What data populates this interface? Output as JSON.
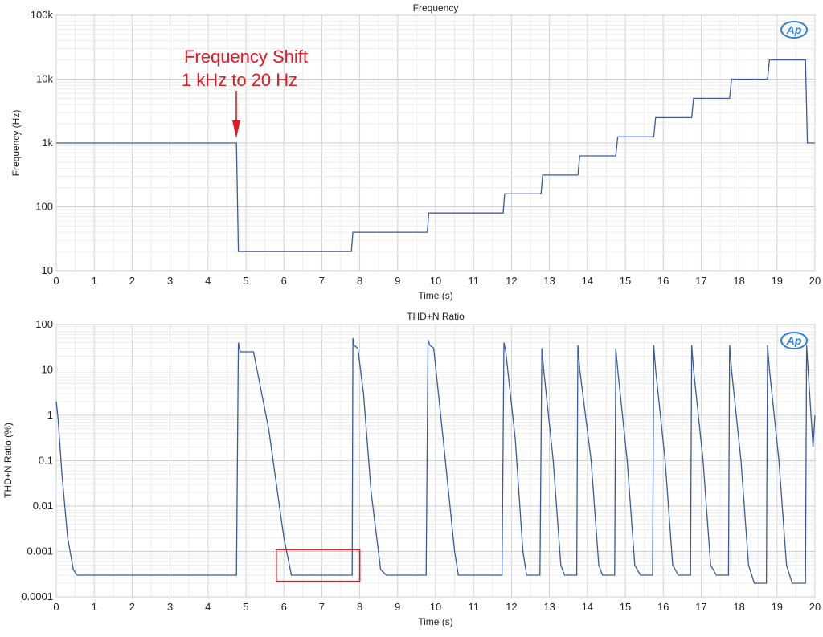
{
  "accent_color": "#e01b24",
  "line_color": "#3b5b9a",
  "logo_text": "AP",
  "chart_data": [
    {
      "type": "line",
      "title": "Frequency",
      "xlabel": "Time (s)",
      "ylabel": "Frequency (Hz)",
      "xlim": [
        0,
        20
      ],
      "ylim": [
        10,
        100000
      ],
      "yscale": "log",
      "grid": true,
      "x_ticks": [
        "0",
        "1",
        "2",
        "3",
        "4",
        "5",
        "6",
        "7",
        "8",
        "9",
        "10",
        "11",
        "12",
        "13",
        "14",
        "15",
        "16",
        "17",
        "18",
        "19",
        "20"
      ],
      "y_ticks": [
        {
          "value": 100000,
          "label": "100k"
        },
        {
          "value": 10000,
          "label": "10k"
        },
        {
          "value": 1000,
          "label": "1k"
        },
        {
          "value": 100,
          "label": "100"
        },
        {
          "value": 10,
          "label": "10"
        }
      ],
      "annotation": {
        "lines": [
          "Frequency Shift",
          "1 kHz to 20 Hz"
        ],
        "x": 4.8,
        "y": 1000
      },
      "series": [
        {
          "x": [
            0,
            4.75,
            4.8,
            7.78,
            7.82,
            9.78,
            9.82,
            11.78,
            11.82,
            12.78,
            12.82,
            13.75,
            13.8,
            14.75,
            14.8,
            15.75,
            15.8,
            16.75,
            16.8,
            17.75,
            17.8,
            18.75,
            18.8,
            19.75,
            19.8,
            20
          ],
          "y": [
            1000,
            1000,
            20,
            20,
            40,
            40,
            80,
            80,
            160,
            160,
            315,
            315,
            630,
            630,
            1250,
            1250,
            2500,
            2500,
            5000,
            5000,
            10000,
            10000,
            20000,
            20000,
            1000,
            1000
          ]
        }
      ]
    },
    {
      "type": "line",
      "title": "THD+N Ratio",
      "xlabel": "Time (s)",
      "ylabel": "THD+N Ratio (%)",
      "xlim": [
        0,
        20
      ],
      "ylim": [
        0.0001,
        100
      ],
      "yscale": "log",
      "grid": true,
      "x_ticks": [
        "0",
        "1",
        "2",
        "3",
        "4",
        "5",
        "6",
        "7",
        "8",
        "9",
        "10",
        "11",
        "12",
        "13",
        "14",
        "15",
        "16",
        "17",
        "18",
        "19",
        "20"
      ],
      "y_ticks": [
        {
          "value": 100,
          "label": "100"
        },
        {
          "value": 10,
          "label": "10"
        },
        {
          "value": 1,
          "label": "1"
        },
        {
          "value": 0.1,
          "label": "0.1"
        },
        {
          "value": 0.01,
          "label": "0.01"
        },
        {
          "value": 0.001,
          "label": "0.001"
        },
        {
          "value": 0.0001,
          "label": "0.0001"
        }
      ],
      "highlight_box": {
        "x": [
          5.8,
          8.0
        ],
        "y": [
          0.00022,
          0.0011
        ]
      },
      "series": [
        {
          "x": [
            0,
            0.05,
            0.15,
            0.3,
            0.45,
            0.55,
            1,
            2,
            3,
            4,
            4.75,
            4.8,
            4.85,
            4.95,
            5.2,
            5.6,
            6.0,
            6.2,
            6.6,
            7.0,
            7.4,
            7.8,
            7.82,
            7.85,
            7.95,
            8.1,
            8.3,
            8.55,
            8.7,
            8.8,
            9.2,
            9.75,
            9.8,
            9.85,
            9.95,
            10.2,
            10.5,
            10.6,
            11.0,
            11.75,
            11.8,
            11.85,
            12.1,
            12.3,
            12.4,
            12.75,
            12.8,
            12.85,
            13.1,
            13.3,
            13.4,
            13.72,
            13.75,
            13.8,
            14.1,
            14.3,
            14.4,
            14.72,
            14.75,
            14.8,
            15.05,
            15.25,
            15.4,
            15.72,
            15.75,
            15.8,
            16.05,
            16.25,
            16.4,
            16.72,
            16.75,
            16.8,
            17.05,
            17.25,
            17.4,
            17.72,
            17.75,
            17.8,
            18.05,
            18.25,
            18.4,
            18.72,
            18.75,
            18.8,
            19.05,
            19.25,
            19.4,
            19.75,
            19.78,
            19.82,
            19.95,
            20
          ],
          "y": [
            2,
            0.8,
            0.05,
            0.002,
            0.0004,
            0.0003,
            0.0003,
            0.0003,
            0.0003,
            0.0003,
            0.0003,
            40,
            25,
            25,
            25,
            0.5,
            0.002,
            0.0003,
            0.0003,
            0.0003,
            0.0003,
            0.0003,
            50,
            35,
            30,
            3,
            0.02,
            0.0004,
            0.0003,
            0.0003,
            0.0003,
            0.0003,
            45,
            35,
            30,
            0.3,
            0.001,
            0.0003,
            0.0003,
            0.0003,
            40,
            25,
            0.3,
            0.001,
            0.0003,
            0.0003,
            30,
            10,
            0.1,
            0.0005,
            0.0003,
            0.0003,
            35,
            10,
            0.1,
            0.0005,
            0.0003,
            0.0003,
            30,
            10,
            0.1,
            0.0005,
            0.0003,
            0.0003,
            35,
            10,
            0.1,
            0.0005,
            0.0003,
            0.0003,
            35,
            10,
            0.1,
            0.0005,
            0.0003,
            0.0003,
            35,
            10,
            0.1,
            0.0005,
            0.0002,
            0.0002,
            35,
            10,
            0.1,
            0.0005,
            0.0002,
            0.0002,
            35,
            10,
            0.2,
            1
          ]
        }
      ]
    }
  ]
}
